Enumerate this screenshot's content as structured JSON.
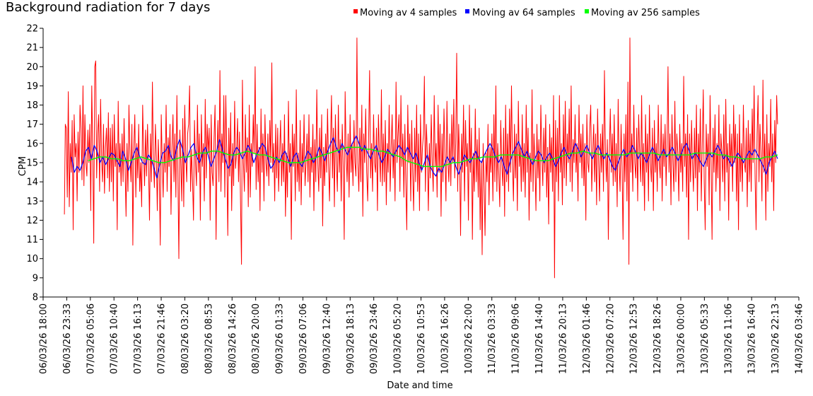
{
  "chart_data": {
    "type": "line",
    "title": "Background radiation for 7 days",
    "xlabel": "Date and time",
    "ylabel": "CPM",
    "ylim": [
      8,
      22
    ],
    "y_ticks": [
      8,
      9,
      10,
      11,
      12,
      13,
      14,
      15,
      16,
      17,
      18,
      19,
      20,
      21,
      22
    ],
    "x_tick_labels": [
      "06/03/26 18:00",
      "06/03/26 23:33",
      "07/03/26 05:06",
      "07/03/26 10:40",
      "07/03/26 16:13",
      "07/03/26 21:46",
      "08/03/26 03:20",
      "08/03/26 08:53",
      "08/03/26 14:26",
      "08/03/26 20:00",
      "09/03/26 01:33",
      "09/03/26 07:06",
      "09/03/26 12:40",
      "09/03/26 18:13",
      "09/03/26 23:46",
      "10/03/26 05:20",
      "10/03/26 10:53",
      "10/03/26 16:26",
      "10/03/26 22:00",
      "11/03/26 03:33",
      "11/03/26 09:06",
      "11/03/26 14:40",
      "11/03/26 20:13",
      "12/03/26 01:46",
      "12/03/26 07:20",
      "12/03/26 12:53",
      "12/03/26 18:26",
      "13/03/26 00:00",
      "13/03/26 05:33",
      "13/03/26 11:06",
      "13/03/26 16:40",
      "13/03/26 22:13",
      "14/03/26 03:46"
    ],
    "x_range_ticks": [
      0,
      32
    ],
    "legend_position": "top-right",
    "series": [
      {
        "name": "Moving av 4 samples",
        "color": "#ff0000",
        "x_start": 0.9,
        "x_end": 31.1,
        "values": [
          12.3,
          17.0,
          16.8,
          13.2,
          18.7,
          12.7,
          16.0,
          14.5,
          17.2,
          11.5,
          17.5,
          15.3,
          16.0,
          13.0,
          16.6,
          14.5,
          18.0,
          16.8,
          14.1,
          19.0,
          13.8,
          17.5,
          15.0,
          14.3,
          16.7,
          15.0,
          17.0,
          12.5,
          19.0,
          15.5,
          10.8,
          20.0,
          20.3,
          14.2,
          16.5,
          17.5,
          13.5,
          18.3,
          15.2,
          14.0,
          17.0,
          13.4,
          15.8,
          16.8,
          14.2,
          17.6,
          13.5,
          16.8,
          14.0,
          17.0,
          13.0,
          17.5,
          14.8,
          16.0,
          11.5,
          18.2,
          14.5,
          16.0,
          13.8,
          16.5,
          14.0,
          17.3,
          14.8,
          12.2,
          16.0,
          13.5,
          18.0,
          15.5,
          14.0,
          17.0,
          10.7,
          15.8,
          17.5,
          13.2,
          16.0,
          14.2,
          17.0,
          13.5,
          15.0,
          12.7,
          18.0,
          15.5,
          13.8,
          16.7,
          14.3,
          17.0,
          14.8,
          12.0,
          16.5,
          14.0,
          19.2,
          15.0,
          13.7,
          17.0,
          15.3,
          12.5,
          16.2,
          14.4,
          10.7,
          17.5,
          15.0,
          13.2,
          16.0,
          14.5,
          18.0,
          13.5,
          16.3,
          14.8,
          17.0,
          12.3,
          15.8,
          17.5,
          14.0,
          16.5,
          13.2,
          18.5,
          14.5,
          10.0,
          16.7,
          15.0,
          13.0,
          17.3,
          12.7,
          18.0,
          15.5,
          14.0,
          16.5,
          17.0,
          19.0,
          13.5,
          15.7,
          14.0,
          12.0,
          17.2,
          15.0,
          13.8,
          18.0,
          14.5,
          16.5,
          12.0,
          17.5,
          14.8,
          16.0,
          13.0,
          18.3,
          14.2,
          17.0,
          15.5,
          16.8,
          12.0,
          17.5,
          14.5,
          13.8,
          16.3,
          18.0,
          11.0,
          15.5,
          17.2,
          14.0,
          19.8,
          13.5,
          16.5,
          15.0,
          18.5,
          13.2,
          18.5,
          15.5,
          11.2,
          16.8,
          14.3,
          17.6,
          12.5,
          16.0,
          13.8,
          18.2,
          14.7,
          15.5,
          17.3,
          14.0,
          16.6,
          13.0,
          9.7,
          19.3,
          15.0,
          13.5,
          17.5,
          14.5,
          16.3,
          12.7,
          18.0,
          13.2,
          16.0,
          14.8,
          17.5,
          15.5,
          20.0,
          13.6,
          17.0,
          14.0,
          15.8,
          12.5,
          17.8,
          14.5,
          16.5,
          13.0,
          17.5,
          15.0,
          14.3,
          16.5,
          13.8,
          17.2,
          15.0,
          20.2,
          14.5,
          16.0,
          13.0,
          17.0,
          14.2,
          16.8,
          13.5,
          15.5,
          17.2,
          13.8,
          16.0,
          14.0,
          17.5,
          12.2,
          15.5,
          13.2,
          18.2,
          14.5,
          16.0,
          11.0,
          17.0,
          14.8,
          16.5,
          13.0,
          18.8,
          14.0,
          15.5,
          13.5,
          17.2,
          12.8,
          16.0,
          14.5,
          17.5,
          13.8,
          15.0,
          16.5,
          14.0,
          17.5,
          13.2,
          15.8,
          14.5,
          17.0,
          12.5,
          16.2,
          14.0,
          18.8,
          15.0,
          13.5,
          16.8,
          14.2,
          17.5,
          11.7,
          15.8,
          13.8,
          16.5,
          14.5,
          17.8,
          15.0,
          13.0,
          16.0,
          18.5,
          14.2,
          16.8,
          12.7,
          17.5,
          15.0,
          13.5,
          18.0,
          14.5,
          16.2,
          13.0,
          17.0,
          14.8,
          11.0,
          18.7,
          15.5,
          14.0,
          16.5,
          13.2,
          17.5,
          14.5,
          16.0,
          13.8,
          17.2,
          15.0,
          14.3,
          21.5,
          15.0,
          13.5,
          16.8,
          14.0,
          18.0,
          12.2,
          16.5,
          15.0,
          17.8,
          14.5,
          13.0,
          16.5,
          19.8,
          14.2,
          16.0,
          13.5,
          17.5,
          15.0,
          14.5,
          16.8,
          12.5,
          17.5,
          15.5,
          14.0,
          18.8,
          13.8,
          16.5,
          14.0,
          17.2,
          12.8,
          16.0,
          14.5,
          18.0,
          13.5,
          15.8,
          17.5,
          14.2,
          16.2,
          13.0,
          19.2,
          15.0,
          16.5,
          17.5,
          13.5,
          18.5,
          14.8,
          16.5,
          13.2,
          17.0,
          14.0,
          11.5,
          18.0,
          15.0,
          16.5,
          13.0,
          17.2,
          14.5,
          12.5,
          16.8,
          14.0,
          18.0,
          13.5,
          16.5,
          12.5,
          17.5,
          14.5,
          15.8,
          16.5,
          19.5,
          13.5,
          17.0,
          15.5,
          12.5,
          16.0,
          14.2,
          17.5,
          15.0,
          13.5,
          18.5,
          14.8,
          16.0,
          13.2,
          18.0,
          14.5,
          17.0,
          12.2,
          16.5,
          14.0,
          17.8,
          15.5,
          13.0,
          18.2,
          15.0,
          14.0,
          16.5,
          13.8,
          17.5,
          15.0,
          18.3,
          14.2,
          16.0,
          20.7,
          13.5,
          17.0,
          15.0,
          11.2,
          16.5,
          14.5,
          18.0,
          13.0,
          17.2,
          14.8,
          16.0,
          12.0,
          18.0,
          14.5,
          16.8,
          11.0,
          15.5,
          13.5,
          17.8,
          14.0,
          16.2,
          13.2,
          16.8,
          11.5,
          15.0,
          10.2,
          16.0,
          13.8,
          11.2,
          15.5,
          14.0,
          17.0,
          12.8,
          15.8,
          14.5,
          16.5,
          13.0,
          17.5,
          14.0,
          19.0,
          13.5,
          16.0,
          14.5,
          12.7,
          17.2,
          15.0,
          13.8,
          16.8,
          12.2,
          18.0,
          14.0,
          16.5,
          13.5,
          17.8,
          14.5,
          19.0,
          15.0,
          13.0,
          17.0,
          14.2,
          16.5,
          12.5,
          18.2,
          14.8,
          15.8,
          13.5,
          17.5,
          14.0,
          16.0,
          13.2,
          18.0,
          14.5,
          16.8,
          12.0,
          15.5,
          14.0,
          18.8,
          13.5,
          16.5,
          15.0,
          12.5,
          17.0,
          14.2,
          16.2,
          13.0,
          18.0,
          15.5,
          13.8,
          16.8,
          14.5,
          17.5,
          13.2,
          15.8,
          11.8,
          17.0,
          14.5,
          16.3,
          13.5,
          18.5,
          9.0,
          17.2,
          14.0,
          16.8,
          13.0,
          18.5,
          14.5,
          16.0,
          12.8,
          17.5,
          14.2,
          18.2,
          13.8,
          16.5,
          15.0,
          17.8,
          14.0,
          19.0,
          13.5,
          16.2,
          15.0,
          17.5,
          14.5,
          16.0,
          13.0,
          18.0,
          15.0,
          16.5,
          14.2,
          17.0,
          13.8,
          16.0,
          12.0,
          17.5,
          15.0,
          14.5,
          16.8,
          18.0,
          13.5,
          15.5,
          17.0,
          14.0,
          16.5,
          12.8,
          17.8,
          15.0,
          13.0,
          16.5,
          14.5,
          17.0,
          13.5,
          19.8,
          15.5,
          14.0,
          16.2,
          11.0,
          15.5,
          17.8,
          14.5,
          16.5,
          13.8,
          17.5,
          14.0,
          16.0,
          12.7,
          18.3,
          15.0,
          13.5,
          17.0,
          14.8,
          11.0,
          16.5,
          14.0,
          17.5,
          13.0,
          19.2,
          9.7,
          21.5,
          14.5,
          16.5,
          13.5,
          18.0,
          15.0,
          14.2,
          16.8,
          13.0,
          17.5,
          15.5,
          14.0,
          18.5,
          13.8,
          16.0,
          12.5,
          17.5,
          14.5,
          16.5,
          13.0,
          18.0,
          15.0,
          14.0,
          16.8,
          12.5,
          17.2,
          14.5,
          16.0,
          13.5,
          18.0,
          15.0,
          14.2,
          17.5,
          13.0,
          16.5,
          14.8,
          17.0,
          13.8,
          16.0,
          20.0,
          14.5,
          16.5,
          12.8,
          17.5,
          15.0,
          13.5,
          18.2,
          14.0,
          16.5,
          15.5,
          13.0,
          17.0,
          14.5,
          16.0,
          13.5,
          19.5,
          14.8,
          16.5,
          13.2,
          17.5,
          11.0,
          16.5,
          14.0,
          17.2,
          15.0,
          13.5,
          16.8,
          14.2,
          18.0,
          12.5,
          16.5,
          14.5,
          17.8,
          13.0,
          16.0,
          18.8,
          14.0,
          11.5,
          17.0,
          14.8,
          16.5,
          12.8,
          18.5,
          15.0,
          11.0,
          16.8,
          14.5,
          17.5,
          13.5,
          16.0,
          14.2,
          18.0,
          12.5,
          16.5,
          15.5,
          14.0,
          17.5,
          13.0,
          18.3,
          14.5,
          16.0,
          12.0,
          17.0,
          14.8,
          16.5,
          13.5,
          18.0,
          15.0,
          17.0,
          13.0,
          16.5,
          11.5,
          17.5,
          14.0,
          16.0,
          13.5,
          18.0,
          15.0,
          14.5,
          16.8,
          12.7,
          17.2,
          14.0,
          16.5,
          13.5,
          17.8,
          15.0,
          19.0,
          14.2,
          11.5,
          16.5,
          18.5,
          14.0,
          17.0,
          15.5,
          13.0,
          19.3,
          14.5,
          16.5,
          12.0,
          17.5,
          13.5,
          16.0,
          14.8,
          18.3,
          14.0,
          16.5,
          12.5,
          17.2,
          15.0,
          18.5,
          17.0
        ]
      },
      {
        "name": "Moving av 64 samples",
        "color": "#0000ff",
        "x_start": 1.2,
        "x_end": 31.1,
        "values": [
          15.3,
          14.5,
          14.8,
          14.6,
          15.0,
          15.6,
          15.8,
          15.2,
          15.9,
          15.6,
          15.0,
          15.3,
          14.9,
          15.2,
          15.5,
          15.4,
          15.1,
          14.8,
          15.6,
          15.2,
          14.6,
          15.0,
          15.5,
          15.8,
          15.3,
          15.0,
          14.9,
          15.4,
          15.2,
          14.7,
          14.2,
          14.9,
          15.5,
          15.6,
          15.9,
          15.3,
          15.1,
          15.8,
          16.2,
          15.7,
          15.0,
          15.4,
          15.8,
          16.0,
          15.3,
          15.0,
          15.5,
          15.8,
          15.4,
          14.8,
          15.2,
          15.6,
          16.2,
          15.7,
          15.2,
          14.7,
          14.9,
          15.5,
          15.8,
          15.6,
          15.2,
          15.5,
          15.9,
          15.6,
          15.0,
          15.4,
          15.7,
          16.0,
          15.8,
          15.2,
          14.7,
          14.9,
          15.3,
          15.0,
          15.4,
          15.6,
          15.2,
          14.8,
          15.3,
          15.5,
          15.0,
          14.8,
          15.2,
          15.6,
          15.4,
          15.0,
          15.3,
          15.8,
          15.5,
          15.1,
          15.6,
          16.0,
          16.3,
          15.8,
          15.5,
          16.0,
          15.7,
          15.4,
          15.8,
          16.1,
          16.4,
          16.0,
          15.6,
          15.9,
          15.5,
          15.2,
          15.6,
          15.9,
          15.4,
          15.0,
          15.3,
          15.7,
          15.5,
          15.3,
          15.6,
          15.9,
          15.7,
          15.4,
          15.8,
          15.5,
          15.2,
          15.5,
          15.0,
          14.6,
          15.0,
          15.4,
          14.8,
          14.5,
          14.3,
          14.7,
          14.5,
          14.9,
          15.3,
          15.0,
          15.3,
          14.8,
          14.4,
          14.9,
          15.4,
          15.2,
          15.0,
          15.3,
          15.6,
          15.2,
          15.0,
          15.4,
          15.7,
          16.0,
          15.7,
          15.3,
          15.0,
          15.3,
          14.8,
          14.4,
          15.0,
          15.5,
          15.8,
          16.1,
          15.7,
          15.3,
          15.6,
          15.2,
          14.9,
          15.3,
          15.6,
          15.4,
          15.0,
          15.3,
          15.5,
          15.2,
          14.8,
          15.1,
          15.5,
          15.8,
          15.4,
          15.2,
          15.6,
          16.0,
          15.7,
          15.3,
          15.6,
          15.9,
          15.5,
          15.2,
          15.6,
          15.9,
          15.5,
          15.2,
          15.5,
          15.2,
          14.8,
          14.6,
          15.0,
          15.4,
          15.7,
          15.3,
          15.5,
          15.9,
          15.6,
          15.2,
          15.5,
          15.3,
          15.0,
          15.4,
          15.8,
          15.5,
          15.1,
          15.4,
          15.7,
          15.3,
          15.5,
          15.8,
          15.5,
          15.1,
          15.4,
          15.8,
          16.0,
          15.6,
          15.2,
          15.5,
          15.3,
          15.0,
          14.8,
          15.2,
          15.5,
          15.3,
          15.6,
          15.9,
          15.6,
          15.2,
          15.4,
          15.1,
          14.8,
          15.2,
          15.5,
          15.3,
          15.0,
          15.3,
          15.6,
          15.4,
          15.7,
          15.4,
          15.1,
          14.8,
          14.4,
          15.0,
          15.3,
          15.6,
          15.2
        ]
      },
      {
        "name": "Moving av 256 samples",
        "color": "#00ff00",
        "x_start": 1.9,
        "x_end": 31.1,
        "values": [
          15.1,
          15.2,
          15.3,
          15.3,
          15.2,
          15.2,
          15.1,
          15.1,
          15.2,
          15.3,
          15.2,
          15.1,
          15.0,
          15.0,
          15.1,
          15.2,
          15.3,
          15.3,
          15.4,
          15.5,
          15.5,
          15.6,
          15.6,
          15.5,
          15.4,
          15.4,
          15.5,
          15.6,
          15.5,
          15.4,
          15.4,
          15.3,
          15.2,
          15.1,
          15.0,
          15.0,
          15.0,
          15.1,
          15.2,
          15.3,
          15.4,
          15.5,
          15.6,
          15.7,
          15.8,
          15.8,
          15.8,
          15.7,
          15.7,
          15.6,
          15.6,
          15.5,
          15.4,
          15.3,
          15.1,
          15.0,
          14.9,
          14.8,
          14.8,
          14.8,
          14.8,
          14.9,
          15.0,
          15.0,
          15.1,
          15.2,
          15.2,
          15.3,
          15.3,
          15.3,
          15.4,
          15.4,
          15.4,
          15.4,
          15.3,
          15.2,
          15.1,
          15.1,
          15.1,
          15.2,
          15.3,
          15.4,
          15.5,
          15.5,
          15.6,
          15.5,
          15.5,
          15.4,
          15.4,
          15.4,
          15.4,
          15.4,
          15.5,
          15.5,
          15.5,
          15.5,
          15.5,
          15.4,
          15.4,
          15.4,
          15.4,
          15.4,
          15.4,
          15.5,
          15.5,
          15.5,
          15.5,
          15.4,
          15.4,
          15.3,
          15.3,
          15.2,
          15.2,
          15.2,
          15.2,
          15.3,
          15.3,
          15.4
        ]
      }
    ]
  }
}
